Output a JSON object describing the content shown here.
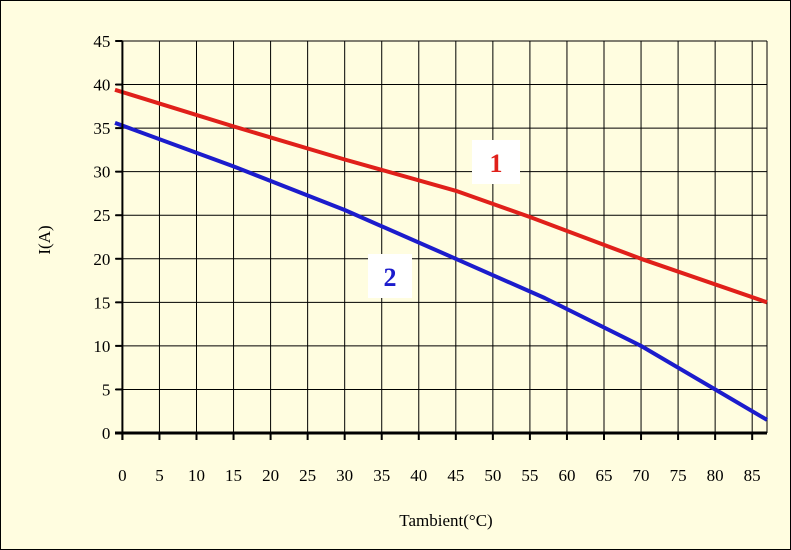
{
  "chart_data": {
    "type": "line",
    "title": "",
    "xlabel": "Tambient(°C)",
    "ylabel": "I(A)",
    "xlim": [
      -1,
      87
    ],
    "ylim": [
      0,
      45
    ],
    "x_ticks": [
      0,
      5,
      10,
      15,
      20,
      25,
      30,
      35,
      40,
      45,
      50,
      55,
      60,
      65,
      70,
      75,
      80,
      85
    ],
    "y_ticks": [
      0,
      5,
      10,
      15,
      20,
      25,
      30,
      35,
      40,
      45
    ],
    "grid": true,
    "background": "#fffde0",
    "series": [
      {
        "name": "1",
        "color": "#e0201a",
        "points": [
          [
            -1,
            39.4
          ],
          [
            15,
            35.2
          ],
          [
            30,
            31.4
          ],
          [
            45,
            27.8
          ],
          [
            55,
            24.8
          ],
          [
            70,
            20.0
          ],
          [
            87,
            15.0
          ]
        ]
      },
      {
        "name": "2",
        "color": "#1c1ccc",
        "points": [
          [
            -1,
            35.6
          ],
          [
            15,
            30.6
          ],
          [
            30,
            25.6
          ],
          [
            45,
            20.0
          ],
          [
            57,
            15.5
          ],
          [
            70,
            10.0
          ],
          [
            80,
            5.0
          ],
          [
            87,
            1.5
          ]
        ]
      }
    ]
  }
}
